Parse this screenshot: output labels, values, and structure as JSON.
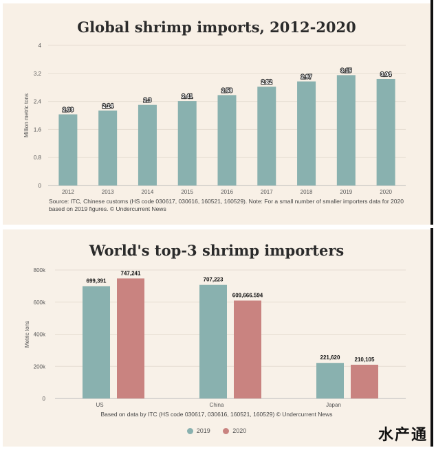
{
  "colors": {
    "teal": "#89b1af",
    "rose": "#c98380",
    "background": "#f8f0e6"
  },
  "chart_data": [
    {
      "type": "bar",
      "title": "Global shrimp imports, 2012-2020",
      "ylabel": "Million metric tons",
      "categories": [
        "2012",
        "2013",
        "2014",
        "2015",
        "2016",
        "2017",
        "2018",
        "2019",
        "2020"
      ],
      "values": [
        2.03,
        2.14,
        2.3,
        2.41,
        2.58,
        2.82,
        2.97,
        3.15,
        3.04
      ],
      "value_labels": [
        "2.03",
        "2.14",
        "2.3",
        "2.41",
        "2.58",
        "2.82",
        "2.97",
        "3.15",
        "3.04"
      ],
      "ylim": [
        0,
        4
      ],
      "yticks": [
        0,
        0.8,
        1.6,
        2.4,
        3.2,
        4
      ],
      "ytick_labels": [
        "0",
        "0.8",
        "1.6",
        "2.4",
        "3.2",
        "4"
      ],
      "source": "Source: ITC, Chinese customs (HS code 030617, 030616, 160521, 160529). Note: For a small number of smaller importers data for 2020 based on 2019 figures. © Undercurrent News"
    },
    {
      "type": "bar",
      "title": "World's top-3 shrimp importers",
      "ylabel": "Metric tons",
      "categories": [
        "US",
        "China",
        "Japan"
      ],
      "series": [
        {
          "name": "2019",
          "values": [
            699391,
            707223,
            221620
          ],
          "labels": [
            "699,391",
            "707,223",
            "221,620"
          ]
        },
        {
          "name": "2020",
          "values": [
            747241,
            609666.594,
            210105
          ],
          "labels": [
            "747,241",
            "609,666.594",
            "210,105"
          ]
        }
      ],
      "ylim": [
        0,
        800000
      ],
      "yticks": [
        0,
        200000,
        400000,
        600000,
        800000
      ],
      "ytick_labels": [
        "0",
        "200k",
        "400k",
        "600k",
        "800k"
      ],
      "legend": "bottom-center",
      "source": "Based on data by ITC (HS code 030617, 030616, 160521, 160529) © Undercurrent News"
    }
  ],
  "watermark": "水产通"
}
